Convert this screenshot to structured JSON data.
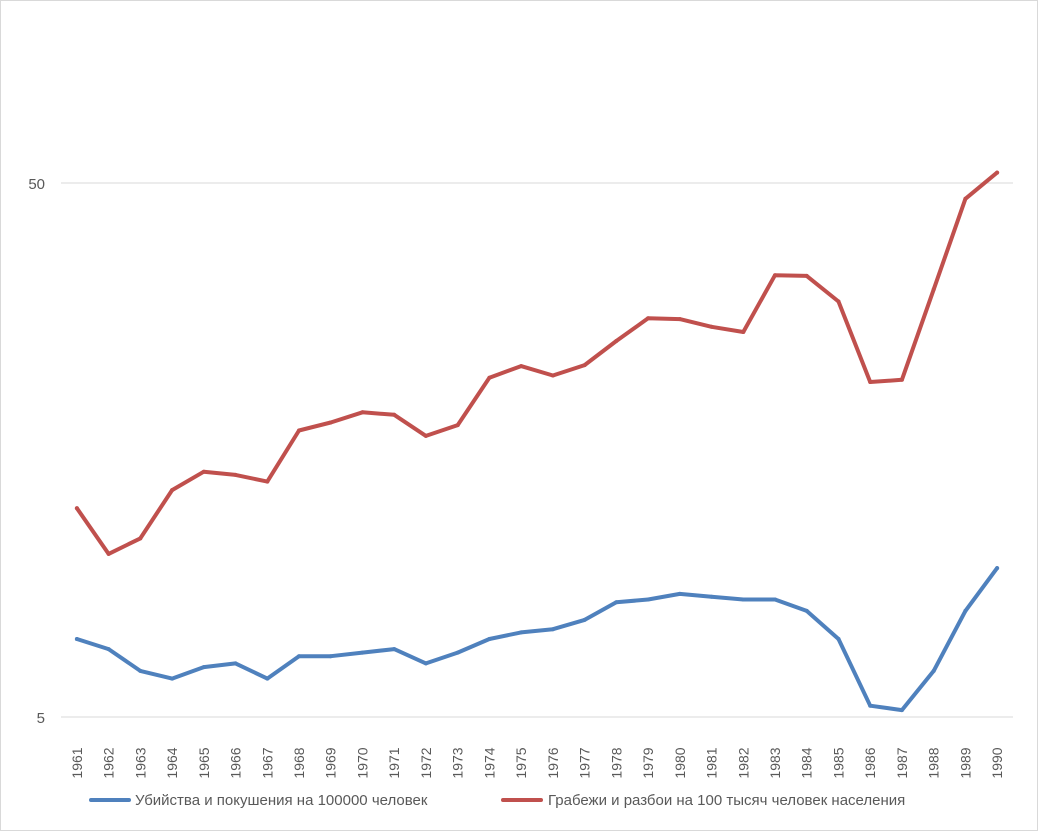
{
  "chart_data": {
    "type": "line",
    "title": "",
    "xlabel": "",
    "ylabel": "",
    "yscale": "log",
    "ylim": [
      5,
      75
    ],
    "yticks": [
      5,
      50
    ],
    "ytick_labels": [
      "5",
      "50"
    ],
    "grid": "horizontal major gridlines",
    "legend_position": "bottom",
    "categories": [
      "1961",
      "1962",
      "1963",
      "1964",
      "1965",
      "1966",
      "1967",
      "1968",
      "1969",
      "1970",
      "1971",
      "1972",
      "1973",
      "1974",
      "1975",
      "1976",
      "1977",
      "1978",
      "1979",
      "1980",
      "1981",
      "1982",
      "1983",
      "1984",
      "1985",
      "1986",
      "1987",
      "1988",
      "1989",
      "1990"
    ],
    "series": [
      {
        "name": "Убийства и покушения на 100000 человек",
        "color": "#4F81BD",
        "values": [
          7.0,
          6.7,
          6.1,
          5.9,
          6.2,
          6.3,
          5.9,
          6.5,
          6.5,
          6.6,
          6.7,
          6.3,
          6.6,
          7.0,
          7.2,
          7.3,
          7.6,
          8.2,
          8.3,
          8.5,
          8.4,
          8.3,
          8.3,
          7.9,
          7.0,
          5.25,
          5.15,
          6.1,
          7.9,
          9.5
        ],
        "value_labels": []
      },
      {
        "name": "Грабежи и разбои на 100 тысяч человек населения",
        "color": "#C0504D",
        "values": [
          12.3,
          10.1,
          10.8,
          13.3,
          14.4,
          14.2,
          13.8,
          17.2,
          17.8,
          18.6,
          18.4,
          16.8,
          17.6,
          21.6,
          22.7,
          21.8,
          22.8,
          25.3,
          27.9,
          27.8,
          26.9,
          26.3,
          33.6,
          33.5,
          30.0,
          21.2,
          21.4,
          31.6,
          46.7,
          52.3
        ],
        "value_labels": []
      }
    ]
  }
}
